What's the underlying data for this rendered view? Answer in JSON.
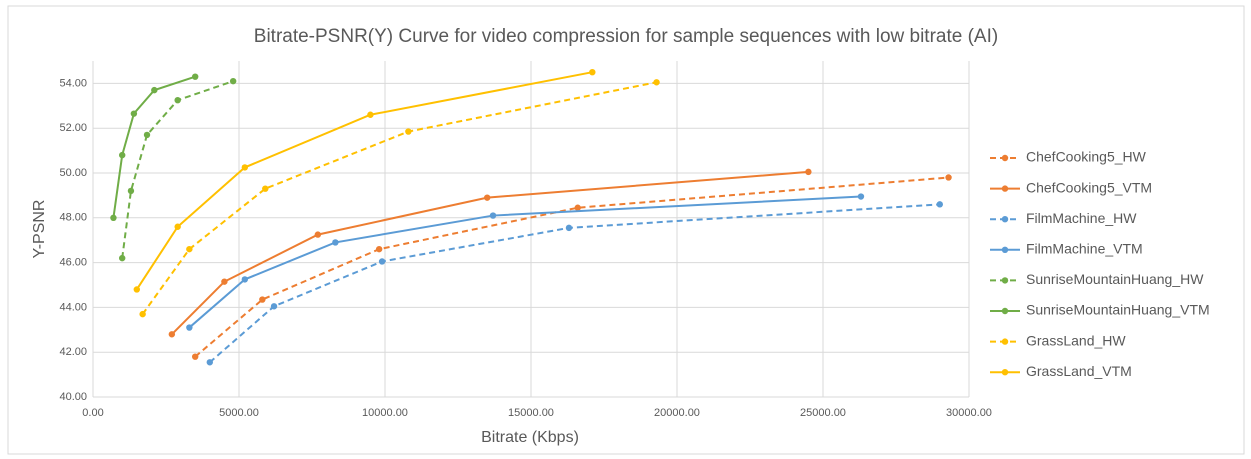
{
  "chart_data": {
    "type": "line",
    "title": "Bitrate-PSNR(Y) Curve for video compression for sample sequences with low bitrate (AI)",
    "xlabel": "Bitrate (Kbps)",
    "ylabel": "Y-PSNR",
    "xlim": [
      0,
      30000
    ],
    "ylim": [
      40,
      55
    ],
    "xticks": [
      {
        "value": 0,
        "label": "0.00"
      },
      {
        "value": 5000,
        "label": "5000.00"
      },
      {
        "value": 10000,
        "label": "10000.00"
      },
      {
        "value": 15000,
        "label": "15000.00"
      },
      {
        "value": 20000,
        "label": "20000.00"
      },
      {
        "value": 25000,
        "label": "25000.00"
      },
      {
        "value": 30000,
        "label": "30000.00"
      }
    ],
    "yticks": [
      {
        "value": 40,
        "label": "40.00"
      },
      {
        "value": 42,
        "label": "42.00"
      },
      {
        "value": 44,
        "label": "44.00"
      },
      {
        "value": 46,
        "label": "46.00"
      },
      {
        "value": 48,
        "label": "48.00"
      },
      {
        "value": 50,
        "label": "50.00"
      },
      {
        "value": 52,
        "label": "52.00"
      },
      {
        "value": 54,
        "label": "54.00"
      }
    ],
    "grid": true,
    "legend": "right",
    "series": [
      {
        "name": "ChefCooking5_HW",
        "color": "#ed7d31",
        "dashed": true,
        "x": [
          3500,
          5800,
          9800,
          16600,
          29300
        ],
        "values": [
          41.8,
          44.35,
          46.6,
          48.45,
          49.8
        ]
      },
      {
        "name": "ChefCooking5_VTM",
        "color": "#ed7d31",
        "dashed": false,
        "x": [
          2700,
          4500,
          7700,
          13500,
          24500
        ],
        "values": [
          42.8,
          45.15,
          47.25,
          48.9,
          50.05
        ]
      },
      {
        "name": "FilmMachine_HW",
        "color": "#5b9bd5",
        "dashed": true,
        "x": [
          4000,
          6200,
          9900,
          16300,
          29000
        ],
        "values": [
          41.55,
          44.05,
          46.05,
          47.55,
          48.6
        ]
      },
      {
        "name": "FilmMachine_VTM",
        "color": "#5b9bd5",
        "dashed": false,
        "x": [
          3300,
          5200,
          8300,
          13700,
          26300
        ],
        "values": [
          43.1,
          45.25,
          46.9,
          48.1,
          48.95
        ]
      },
      {
        "name": "SunriseMountainHuang_HW",
        "color": "#70ad47",
        "dashed": true,
        "x": [
          1000,
          1300,
          1850,
          2900,
          4800
        ],
        "values": [
          46.2,
          49.2,
          51.7,
          53.25,
          54.1
        ]
      },
      {
        "name": "SunriseMountainHuang_VTM",
        "color": "#70ad47",
        "dashed": false,
        "x": [
          700,
          1000,
          1400,
          2100,
          3500
        ],
        "values": [
          48.0,
          50.8,
          52.65,
          53.7,
          54.3
        ]
      },
      {
        "name": "GrassLand_HW",
        "color": "#ffc000",
        "dashed": true,
        "x": [
          1700,
          3300,
          5900,
          10800,
          19300
        ],
        "values": [
          43.7,
          46.6,
          49.3,
          51.85,
          54.05
        ]
      },
      {
        "name": "GrassLand_VTM",
        "color": "#ffc000",
        "dashed": false,
        "x": [
          1500,
          2900,
          5200,
          9500,
          17100
        ],
        "values": [
          44.8,
          47.6,
          50.25,
          52.6,
          54.5
        ]
      }
    ]
  }
}
